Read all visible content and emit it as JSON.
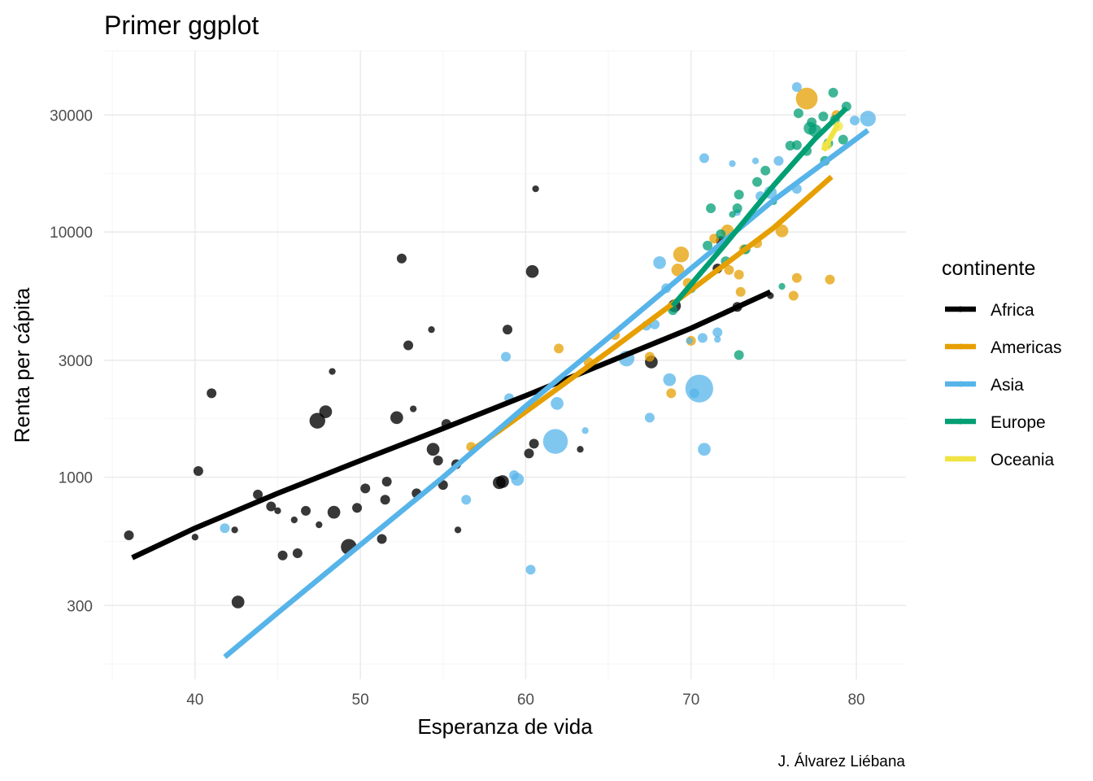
{
  "chart_data": {
    "type": "scatter",
    "title": "Primer ggplot",
    "xlabel": "Esperanza de vida",
    "ylabel": "Renta per cápita",
    "caption": "J. Álvarez Liébana",
    "xlim": [
      34.5,
      83
    ],
    "ylim": [
      150,
      55000
    ],
    "y_scale": "log10",
    "x_ticks": [
      40,
      50,
      60,
      70,
      80
    ],
    "x_tick_labels": [
      "40",
      "50",
      "60",
      "70",
      "80"
    ],
    "y_ticks": [
      300,
      1000,
      3000,
      10000,
      30000
    ],
    "y_tick_labels": [
      "300",
      "1000",
      "3000",
      "10000",
      "30000"
    ],
    "grid": true,
    "legend": {
      "title": "continente",
      "placement": "right"
    },
    "series": [
      {
        "name": "Africa",
        "color": "#000000",
        "trend": [
          [
            36.2,
            470
          ],
          [
            40,
            620
          ],
          [
            45,
            860
          ],
          [
            50,
            1170
          ],
          [
            55,
            1580
          ],
          [
            60,
            2150
          ],
          [
            65,
            2950
          ],
          [
            70,
            4050
          ],
          [
            74.8,
            5700
          ]
        ],
        "points": [
          [
            36.0,
            580,
            2
          ],
          [
            40.0,
            570,
            1
          ],
          [
            40.2,
            1060,
            2
          ],
          [
            41.0,
            2200,
            2
          ],
          [
            42.4,
            610,
            1
          ],
          [
            42.6,
            310,
            3
          ],
          [
            43.8,
            850,
            2
          ],
          [
            44.6,
            760,
            2
          ],
          [
            45.0,
            730,
            1
          ],
          [
            45.3,
            480,
            2
          ],
          [
            46.0,
            670,
            1
          ],
          [
            46.2,
            490,
            2
          ],
          [
            46.7,
            730,
            2
          ],
          [
            47.4,
            1700,
            4
          ],
          [
            47.5,
            640,
            1
          ],
          [
            47.9,
            1850,
            3
          ],
          [
            48.3,
            2700,
            1
          ],
          [
            48.4,
            720,
            3
          ],
          [
            49.3,
            520,
            4
          ],
          [
            49.8,
            750,
            2
          ],
          [
            50.3,
            900,
            2
          ],
          [
            51.3,
            560,
            2
          ],
          [
            51.5,
            810,
            2
          ],
          [
            51.6,
            960,
            2
          ],
          [
            52.2,
            1750,
            3
          ],
          [
            52.5,
            7800,
            2
          ],
          [
            52.9,
            3450,
            2
          ],
          [
            53.2,
            1900,
            1
          ],
          [
            53.4,
            860,
            2
          ],
          [
            54.3,
            4000,
            1
          ],
          [
            54.4,
            1300,
            3
          ],
          [
            54.7,
            1170,
            2
          ],
          [
            55.0,
            930,
            2
          ],
          [
            55.2,
            1650,
            2
          ],
          [
            55.8,
            1130,
            2
          ],
          [
            55.9,
            610,
            1
          ],
          [
            58.4,
            950,
            3
          ],
          [
            58.6,
            960,
            3
          ],
          [
            58.9,
            4000,
            2
          ],
          [
            60.2,
            1250,
            2
          ],
          [
            60.4,
            6900,
            3
          ],
          [
            60.5,
            1370,
            2
          ],
          [
            60.6,
            15000,
            1
          ],
          [
            63.3,
            1300,
            1
          ],
          [
            67.6,
            2950,
            3
          ],
          [
            69.0,
            5000,
            3
          ],
          [
            71.6,
            7100,
            2
          ],
          [
            71.8,
            9200,
            2
          ],
          [
            72.8,
            4950,
            2
          ],
          [
            74.8,
            5500,
            1
          ]
        ]
      },
      {
        "name": "Americas",
        "color": "#e69f00",
        "trend": [
          [
            56.7,
            1280
          ],
          [
            60,
            1850
          ],
          [
            65,
            3250
          ],
          [
            70,
            5800
          ],
          [
            75,
            10400
          ],
          [
            78.5,
            16800
          ]
        ],
        "points": [
          [
            56.7,
            1330,
            2
          ],
          [
            62.0,
            3350,
            2
          ],
          [
            63.8,
            2950,
            2
          ],
          [
            65.4,
            3800,
            2
          ],
          [
            67.5,
            3100,
            2
          ],
          [
            68.8,
            2200,
            2
          ],
          [
            69.2,
            7000,
            3
          ],
          [
            69.4,
            8100,
            4
          ],
          [
            69.8,
            6200,
            2
          ],
          [
            70.0,
            3600,
            2
          ],
          [
            71.4,
            9400,
            2
          ],
          [
            72.2,
            10100,
            3
          ],
          [
            72.3,
            7000,
            2
          ],
          [
            72.9,
            6700,
            2
          ],
          [
            73.0,
            5700,
            2
          ],
          [
            73.2,
            8500,
            2
          ],
          [
            74.0,
            9000,
            2
          ],
          [
            75.5,
            10100,
            3
          ],
          [
            76.2,
            5500,
            2
          ],
          [
            76.4,
            6500,
            2
          ],
          [
            77.0,
            35000,
            6
          ],
          [
            78.4,
            6400,
            2
          ],
          [
            78.8,
            30000,
            2
          ]
        ]
      },
      {
        "name": "Asia",
        "color": "#56b4e9",
        "trend": [
          [
            41.8,
            185
          ],
          [
            45,
            280
          ],
          [
            50,
            530
          ],
          [
            55,
            1000
          ],
          [
            60,
            1950
          ],
          [
            65,
            3700
          ],
          [
            70,
            7100
          ],
          [
            75,
            13500
          ],
          [
            80.7,
            26000
          ]
        ],
        "points": [
          [
            41.8,
            620,
            2
          ],
          [
            56.4,
            810,
            2
          ],
          [
            58.8,
            3100,
            2
          ],
          [
            59.0,
            2100,
            2
          ],
          [
            59.3,
            1020,
            2
          ],
          [
            59.5,
            980,
            3
          ],
          [
            60.3,
            420,
            2
          ],
          [
            61.8,
            1400,
            7
          ],
          [
            61.9,
            2000,
            3
          ],
          [
            63.6,
            1550,
            1
          ],
          [
            66.1,
            3050,
            4
          ],
          [
            67.3,
            4150,
            2
          ],
          [
            67.5,
            1750,
            2
          ],
          [
            67.8,
            4200,
            2
          ],
          [
            68.1,
            7500,
            3
          ],
          [
            68.5,
            5900,
            2
          ],
          [
            68.7,
            2500,
            3
          ],
          [
            69.9,
            3600,
            1
          ],
          [
            70.2,
            2200,
            2
          ],
          [
            70.5,
            2300,
            8
          ],
          [
            70.7,
            3700,
            2
          ],
          [
            70.8,
            20000,
            2
          ],
          [
            70.8,
            1300,
            3
          ],
          [
            71.6,
            3900,
            2
          ],
          [
            71.6,
            3650,
            1
          ],
          [
            72.5,
            19000,
            1
          ],
          [
            72.8,
            12000,
            1
          ],
          [
            73.9,
            19500,
            1
          ],
          [
            74.2,
            14000,
            2
          ],
          [
            74.8,
            14500,
            3
          ],
          [
            75.3,
            19500,
            2
          ],
          [
            76.4,
            39000,
            2
          ],
          [
            76.4,
            15000,
            2
          ],
          [
            79.9,
            28500,
            2
          ],
          [
            80.7,
            29000,
            4
          ]
        ]
      },
      {
        "name": "Europe",
        "color": "#009e73",
        "trend": [
          [
            68.9,
            5000
          ],
          [
            72,
            8800
          ],
          [
            75,
            15500
          ],
          [
            77.5,
            24000
          ],
          [
            79.4,
            32000
          ]
        ],
        "points": [
          [
            68.9,
            4800,
            2
          ],
          [
            70.0,
            5900,
            2
          ],
          [
            71.0,
            8800,
            2
          ],
          [
            71.2,
            12500,
            2
          ],
          [
            71.8,
            9800,
            2
          ],
          [
            72.1,
            7600,
            2
          ],
          [
            72.5,
            11800,
            1
          ],
          [
            72.8,
            12500,
            2
          ],
          [
            72.9,
            3150,
            2
          ],
          [
            72.9,
            14200,
            2
          ],
          [
            73.3,
            8500,
            2
          ],
          [
            74.0,
            16000,
            2
          ],
          [
            74.5,
            17800,
            2
          ],
          [
            75.0,
            13300,
            1
          ],
          [
            75.5,
            6000,
            1
          ],
          [
            76.0,
            22500,
            2
          ],
          [
            76.4,
            22600,
            2
          ],
          [
            76.5,
            30500,
            2
          ],
          [
            77.0,
            21400,
            2
          ],
          [
            77.2,
            26500,
            3
          ],
          [
            77.3,
            28000,
            2
          ],
          [
            77.5,
            25900,
            3
          ],
          [
            78.0,
            29600,
            2
          ],
          [
            78.1,
            19500,
            2
          ],
          [
            78.3,
            23000,
            2
          ],
          [
            78.6,
            37000,
            2
          ],
          [
            78.7,
            28700,
            2
          ],
          [
            79.2,
            23800,
            2
          ],
          [
            79.4,
            32500,
            2
          ]
        ]
      },
      {
        "name": "Oceania",
        "color": "#f0e442",
        "trend": [
          [
            78.0,
            21500
          ],
          [
            78.9,
            27500
          ]
        ],
        "points": [
          [
            78.2,
            22500,
            2
          ],
          [
            78.9,
            27000,
            2
          ]
        ]
      }
    ]
  }
}
